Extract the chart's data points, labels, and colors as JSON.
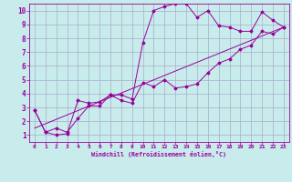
{
  "xlabel": "Windchill (Refroidissement éolien,°C)",
  "bg_color": "#c8ecec",
  "line_color": "#990099",
  "grid_color": "#aaaacc",
  "xlim": [
    -0.5,
    23.5
  ],
  "ylim": [
    0.5,
    10.5
  ],
  "xticks": [
    0,
    1,
    2,
    3,
    4,
    5,
    6,
    7,
    8,
    9,
    10,
    11,
    12,
    13,
    14,
    15,
    16,
    17,
    18,
    19,
    20,
    21,
    22,
    23
  ],
  "yticks": [
    1,
    2,
    3,
    4,
    5,
    6,
    7,
    8,
    9,
    10
  ],
  "line1_x": [
    0,
    1,
    2,
    3,
    4,
    5,
    6,
    7,
    8,
    9,
    10,
    11,
    12,
    13,
    14,
    15,
    16,
    17,
    18,
    19,
    20,
    21,
    22,
    23
  ],
  "line1_y": [
    2.8,
    1.2,
    1.0,
    1.1,
    3.5,
    3.3,
    3.4,
    3.9,
    3.9,
    3.6,
    7.7,
    10.0,
    10.3,
    10.5,
    10.5,
    9.5,
    10.0,
    8.9,
    8.8,
    8.5,
    8.5,
    9.9,
    9.3,
    8.8
  ],
  "line2_x": [
    0,
    1,
    2,
    3,
    4,
    5,
    6,
    7,
    8,
    9,
    10,
    11,
    12,
    13,
    14,
    15,
    16,
    17,
    18,
    19,
    20,
    21,
    22,
    23
  ],
  "line2_y": [
    2.8,
    1.2,
    1.5,
    1.2,
    2.2,
    3.1,
    3.1,
    3.9,
    3.5,
    3.3,
    4.8,
    4.5,
    5.0,
    4.4,
    4.5,
    4.7,
    5.5,
    6.2,
    6.5,
    7.2,
    7.5,
    8.5,
    8.3,
    8.8
  ],
  "trend_x": [
    0,
    23
  ],
  "trend_y": [
    1.5,
    8.8
  ]
}
